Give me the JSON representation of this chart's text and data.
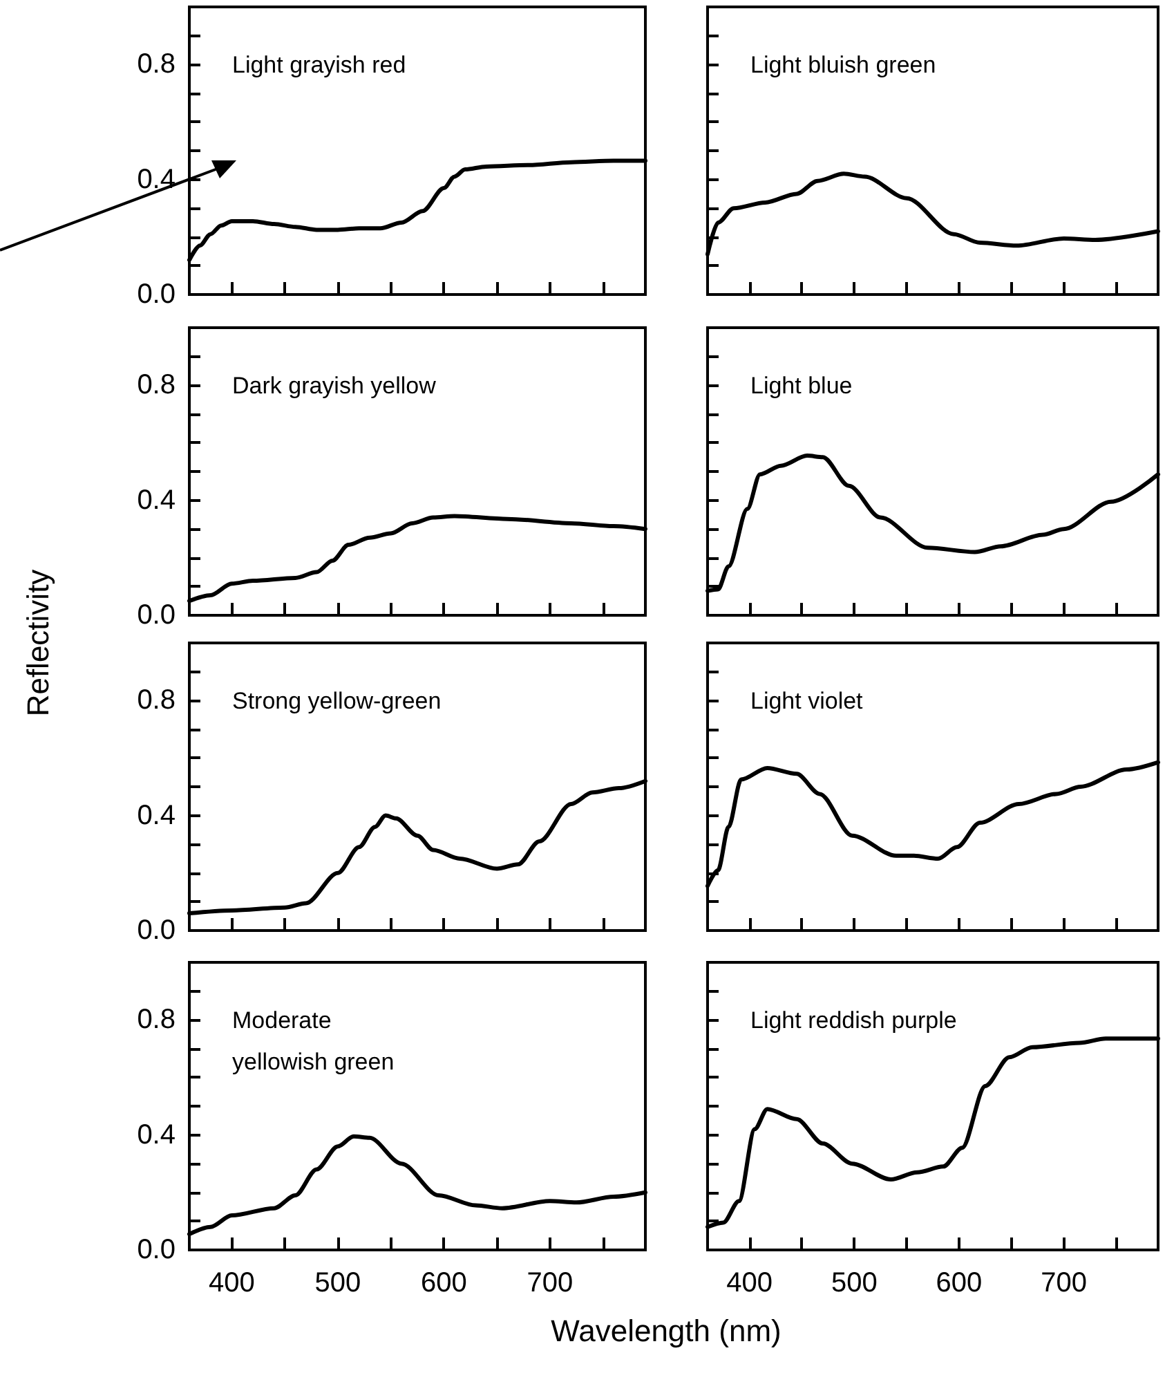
{
  "chart_data": [
    {
      "type": "line",
      "title": "Light grayish red",
      "x": [
        360,
        370,
        380,
        390,
        400,
        420,
        440,
        460,
        480,
        500,
        520,
        540,
        560,
        580,
        600,
        610,
        620,
        640,
        680,
        720,
        760,
        790
      ],
      "values": [
        0.12,
        0.17,
        0.21,
        0.24,
        0.255,
        0.255,
        0.245,
        0.235,
        0.225,
        0.225,
        0.23,
        0.23,
        0.25,
        0.29,
        0.37,
        0.41,
        0.435,
        0.445,
        0.45,
        0.46,
        0.465,
        0.465
      ],
      "color": "#000000",
      "marker": "none",
      "xlim": [
        360,
        790
      ],
      "xticks": [
        {
          "value": 400,
          "label": null
        },
        {
          "value": 450,
          "label": null
        },
        {
          "value": 500,
          "label": null
        },
        {
          "value": 550,
          "label": null
        },
        {
          "value": 600,
          "label": null
        },
        {
          "value": 650,
          "label": null
        },
        {
          "value": 700,
          "label": null
        },
        {
          "value": 750,
          "label": null
        }
      ],
      "ylim": [
        0,
        1
      ],
      "yticks": [
        {
          "value": 0,
          "label": "0.0"
        },
        {
          "value": 0.1,
          "label": null
        },
        {
          "value": 0.2,
          "label": null
        },
        {
          "value": 0.3,
          "label": null
        },
        {
          "value": 0.4,
          "label": "0.4"
        },
        {
          "value": 0.5,
          "label": null
        },
        {
          "value": 0.6,
          "label": null
        },
        {
          "value": 0.7,
          "label": null
        },
        {
          "value": 0.8,
          "label": "0.8"
        },
        {
          "value": 0.9,
          "label": null
        }
      ],
      "tick_labels": "y"
    },
    {
      "type": "line",
      "title": "Light bluish green",
      "x": [
        360,
        370,
        385,
        415,
        445,
        465,
        490,
        510,
        550,
        595,
        620,
        655,
        700,
        730,
        790
      ],
      "values": [
        0.14,
        0.25,
        0.3,
        0.32,
        0.35,
        0.395,
        0.42,
        0.41,
        0.335,
        0.21,
        0.18,
        0.17,
        0.195,
        0.19,
        0.22
      ],
      "color": "#000000",
      "marker": "none",
      "xlim": [
        360,
        790
      ],
      "xticks": [
        {
          "value": 400,
          "label": null
        },
        {
          "value": 450,
          "label": null
        },
        {
          "value": 500,
          "label": null
        },
        {
          "value": 550,
          "label": null
        },
        {
          "value": 600,
          "label": null
        },
        {
          "value": 650,
          "label": null
        },
        {
          "value": 700,
          "label": null
        },
        {
          "value": 750,
          "label": null
        }
      ],
      "ylim": [
        0,
        1
      ],
      "yticks": [
        {
          "value": 0,
          "label": null
        },
        {
          "value": 0.1,
          "label": null
        },
        {
          "value": 0.2,
          "label": null
        },
        {
          "value": 0.3,
          "label": null
        },
        {
          "value": 0.4,
          "label": null
        },
        {
          "value": 0.5,
          "label": null
        },
        {
          "value": 0.6,
          "label": null
        },
        {
          "value": 0.7,
          "label": null
        },
        {
          "value": 0.8,
          "label": null
        },
        {
          "value": 0.9,
          "label": null
        }
      ],
      "tick_labels": false
    },
    {
      "type": "line",
      "title": "Dark grayish yellow",
      "x": [
        360,
        380,
        400,
        420,
        460,
        480,
        495,
        510,
        530,
        550,
        570,
        590,
        610,
        660,
        720,
        760,
        790
      ],
      "values": [
        0.05,
        0.07,
        0.11,
        0.12,
        0.13,
        0.15,
        0.19,
        0.245,
        0.27,
        0.285,
        0.32,
        0.34,
        0.345,
        0.335,
        0.32,
        0.31,
        0.3
      ],
      "color": "#000000",
      "marker": "none",
      "xlim": [
        360,
        790
      ],
      "xticks": [
        {
          "value": 400,
          "label": null
        },
        {
          "value": 450,
          "label": null
        },
        {
          "value": 500,
          "label": null
        },
        {
          "value": 550,
          "label": null
        },
        {
          "value": 600,
          "label": null
        },
        {
          "value": 650,
          "label": null
        },
        {
          "value": 700,
          "label": null
        },
        {
          "value": 750,
          "label": null
        }
      ],
      "ylim": [
        0,
        1
      ],
      "yticks": [
        {
          "value": 0,
          "label": "0.0"
        },
        {
          "value": 0.1,
          "label": null
        },
        {
          "value": 0.2,
          "label": null
        },
        {
          "value": 0.3,
          "label": null
        },
        {
          "value": 0.4,
          "label": "0.4"
        },
        {
          "value": 0.5,
          "label": null
        },
        {
          "value": 0.6,
          "label": null
        },
        {
          "value": 0.7,
          "label": null
        },
        {
          "value": 0.8,
          "label": "0.8"
        },
        {
          "value": 0.9,
          "label": null
        }
      ],
      "tick_labels": "y"
    },
    {
      "type": "line",
      "title": "Light blue",
      "x": [
        360,
        370,
        380,
        398,
        410,
        430,
        455,
        470,
        495,
        525,
        570,
        615,
        640,
        680,
        700,
        745,
        790
      ],
      "values": [
        0.085,
        0.09,
        0.17,
        0.37,
        0.49,
        0.52,
        0.555,
        0.55,
        0.45,
        0.34,
        0.235,
        0.22,
        0.24,
        0.28,
        0.3,
        0.395,
        0.49
      ],
      "color": "#000000",
      "marker": "none",
      "xlim": [
        360,
        790
      ],
      "xticks": [
        {
          "value": 400,
          "label": null
        },
        {
          "value": 450,
          "label": null
        },
        {
          "value": 500,
          "label": null
        },
        {
          "value": 550,
          "label": null
        },
        {
          "value": 600,
          "label": null
        },
        {
          "value": 650,
          "label": null
        },
        {
          "value": 700,
          "label": null
        },
        {
          "value": 750,
          "label": null
        }
      ],
      "ylim": [
        0,
        1
      ],
      "yticks": [
        {
          "value": 0,
          "label": null
        },
        {
          "value": 0.1,
          "label": null
        },
        {
          "value": 0.2,
          "label": null
        },
        {
          "value": 0.3,
          "label": null
        },
        {
          "value": 0.4,
          "label": null
        },
        {
          "value": 0.5,
          "label": null
        },
        {
          "value": 0.6,
          "label": null
        },
        {
          "value": 0.7,
          "label": null
        },
        {
          "value": 0.8,
          "label": null
        },
        {
          "value": 0.9,
          "label": null
        }
      ],
      "tick_labels": false
    },
    {
      "type": "line",
      "title": "Strong yellow-green",
      "ylabel": "Reflectivity",
      "x": [
        360,
        400,
        450,
        470,
        500,
        520,
        535,
        545,
        555,
        575,
        590,
        615,
        650,
        670,
        690,
        720,
        740,
        765,
        790
      ],
      "values": [
        0.06,
        0.07,
        0.08,
        0.095,
        0.2,
        0.29,
        0.36,
        0.4,
        0.39,
        0.33,
        0.28,
        0.25,
        0.215,
        0.23,
        0.31,
        0.44,
        0.48,
        0.495,
        0.52
      ],
      "color": "#000000",
      "marker": "none",
      "xlim": [
        360,
        790
      ],
      "xticks": [
        {
          "value": 400,
          "label": null
        },
        {
          "value": 450,
          "label": null
        },
        {
          "value": 500,
          "label": null
        },
        {
          "value": 550,
          "label": null
        },
        {
          "value": 600,
          "label": null
        },
        {
          "value": 650,
          "label": null
        },
        {
          "value": 700,
          "label": null
        },
        {
          "value": 750,
          "label": null
        }
      ],
      "ylim": [
        0,
        1
      ],
      "yticks": [
        {
          "value": 0,
          "label": "0.0"
        },
        {
          "value": 0.1,
          "label": null
        },
        {
          "value": 0.2,
          "label": null
        },
        {
          "value": 0.3,
          "label": null
        },
        {
          "value": 0.4,
          "label": "0.4"
        },
        {
          "value": 0.5,
          "label": null
        },
        {
          "value": 0.6,
          "label": null
        },
        {
          "value": 0.7,
          "label": null
        },
        {
          "value": 0.8,
          "label": "0.8"
        },
        {
          "value": 0.9,
          "label": null
        }
      ],
      "tick_labels": "y"
    },
    {
      "type": "line",
      "title": "Light violet",
      "x": [
        360,
        370,
        380,
        392,
        417,
        445,
        467,
        498,
        540,
        557,
        580,
        598,
        620,
        657,
        693,
        716,
        760,
        790
      ],
      "values": [
        0.155,
        0.21,
        0.36,
        0.525,
        0.565,
        0.545,
        0.475,
        0.33,
        0.26,
        0.26,
        0.25,
        0.29,
        0.375,
        0.44,
        0.475,
        0.5,
        0.56,
        0.585
      ],
      "color": "#000000",
      "marker": "none",
      "xlim": [
        360,
        790
      ],
      "xticks": [
        {
          "value": 400,
          "label": null
        },
        {
          "value": 450,
          "label": null
        },
        {
          "value": 500,
          "label": null
        },
        {
          "value": 550,
          "label": null
        },
        {
          "value": 600,
          "label": null
        },
        {
          "value": 650,
          "label": null
        },
        {
          "value": 700,
          "label": null
        },
        {
          "value": 750,
          "label": null
        }
      ],
      "ylim": [
        0,
        1
      ],
      "yticks": [
        {
          "value": 0,
          "label": null
        },
        {
          "value": 0.1,
          "label": null
        },
        {
          "value": 0.2,
          "label": null
        },
        {
          "value": 0.3,
          "label": null
        },
        {
          "value": 0.4,
          "label": null
        },
        {
          "value": 0.5,
          "label": null
        },
        {
          "value": 0.6,
          "label": null
        },
        {
          "value": 0.7,
          "label": null
        },
        {
          "value": 0.8,
          "label": null
        },
        {
          "value": 0.9,
          "label": null
        }
      ],
      "tick_labels": false
    },
    {
      "type": "line",
      "title": "Moderate\nyellowish green",
      "xlabel": "Wavelength (nm)",
      "x": [
        360,
        380,
        400,
        440,
        460,
        480,
        500,
        515,
        530,
        560,
        595,
        630,
        655,
        700,
        725,
        760,
        790
      ],
      "values": [
        0.055,
        0.08,
        0.12,
        0.145,
        0.19,
        0.28,
        0.36,
        0.395,
        0.39,
        0.3,
        0.19,
        0.155,
        0.145,
        0.17,
        0.165,
        0.185,
        0.2
      ],
      "color": "#000000",
      "marker": "none",
      "xlim": [
        360,
        790
      ],
      "xticks": [
        {
          "value": 400,
          "label": "400"
        },
        {
          "value": 450,
          "label": null
        },
        {
          "value": 500,
          "label": "500"
        },
        {
          "value": 550,
          "label": null
        },
        {
          "value": 600,
          "label": "600"
        },
        {
          "value": 650,
          "label": null
        },
        {
          "value": 700,
          "label": "700"
        },
        {
          "value": 750,
          "label": null
        }
      ],
      "ylim": [
        0,
        1
      ],
      "yticks": [
        {
          "value": 0,
          "label": "0.0"
        },
        {
          "value": 0.1,
          "label": null
        },
        {
          "value": 0.2,
          "label": null
        },
        {
          "value": 0.3,
          "label": null
        },
        {
          "value": 0.4,
          "label": "0.4"
        },
        {
          "value": 0.5,
          "label": null
        },
        {
          "value": 0.6,
          "label": null
        },
        {
          "value": 0.7,
          "label": null
        },
        {
          "value": 0.8,
          "label": "0.8"
        },
        {
          "value": 0.9,
          "label": null
        }
      ]
    },
    {
      "type": "line",
      "title": "Light reddish purple",
      "x": [
        360,
        375,
        390,
        405,
        417,
        445,
        470,
        498,
        535,
        560,
        585,
        603,
        625,
        648,
        670,
        715,
        740,
        790
      ],
      "values": [
        0.08,
        0.095,
        0.17,
        0.42,
        0.49,
        0.455,
        0.37,
        0.3,
        0.245,
        0.27,
        0.29,
        0.355,
        0.57,
        0.67,
        0.705,
        0.72,
        0.735,
        0.735
      ],
      "color": "#000000",
      "marker": "none",
      "xlim": [
        360,
        790
      ],
      "xticks": [
        {
          "value": 400,
          "label": "400"
        },
        {
          "value": 450,
          "label": null
        },
        {
          "value": 500,
          "label": "500"
        },
        {
          "value": 550,
          "label": null
        },
        {
          "value": 600,
          "label": "600"
        },
        {
          "value": 650,
          "label": null
        },
        {
          "value": 700,
          "label": "700"
        },
        {
          "value": 750,
          "label": null
        }
      ],
      "ylim": [
        0,
        1
      ],
      "yticks": [
        {
          "value": 0,
          "label": null
        },
        {
          "value": 0.1,
          "label": null
        },
        {
          "value": 0.2,
          "label": null
        },
        {
          "value": 0.3,
          "label": null
        },
        {
          "value": 0.4,
          "label": null
        },
        {
          "value": 0.5,
          "label": null
        },
        {
          "value": 0.6,
          "label": null
        },
        {
          "value": 0.7,
          "label": null
        },
        {
          "value": 0.8,
          "label": null
        },
        {
          "value": 0.9,
          "label": null
        }
      ],
      "tick_labels": "x"
    }
  ]
}
